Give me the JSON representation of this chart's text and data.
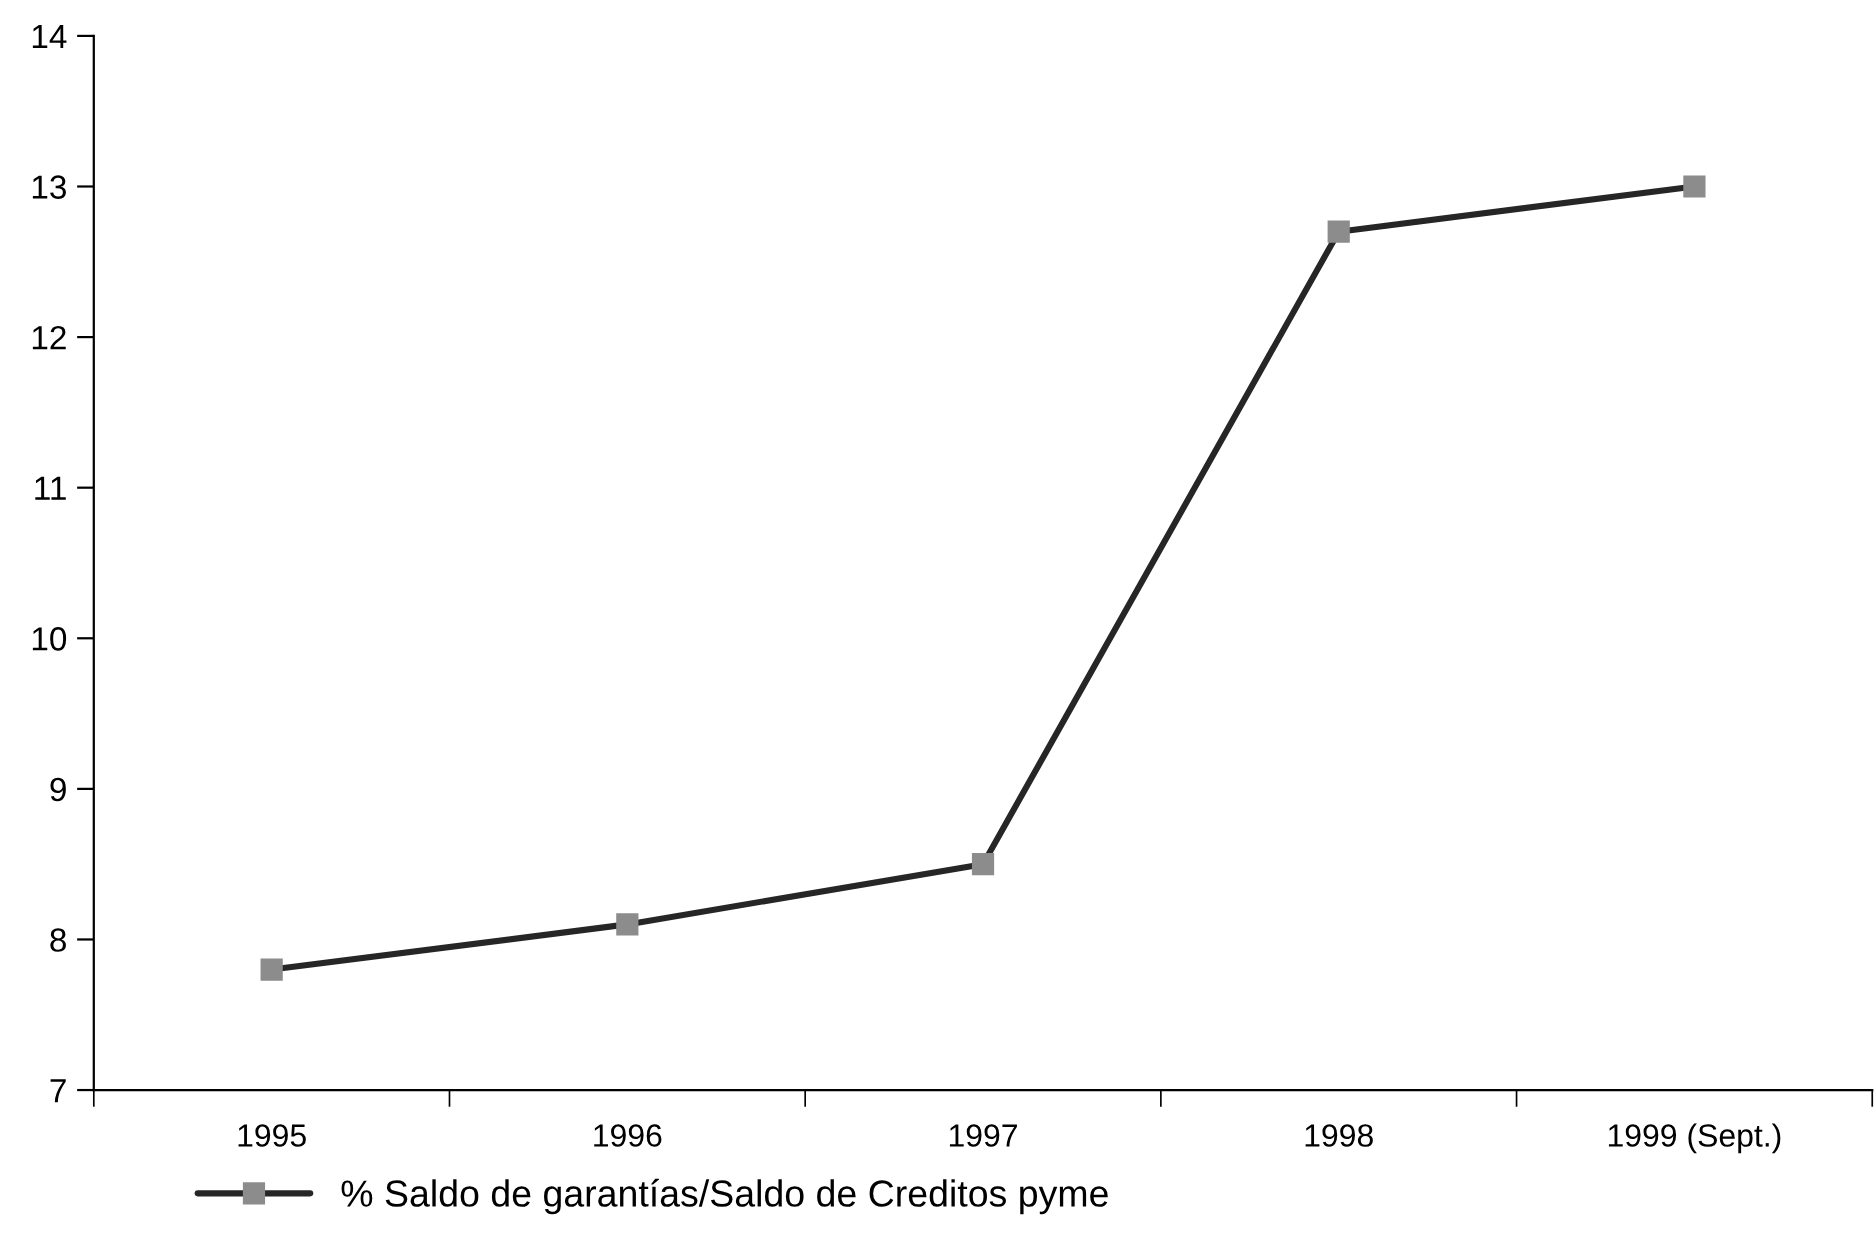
{
  "chart_data": {
    "type": "line",
    "categories": [
      "1995",
      "1996",
      "1997",
      "1998",
      "1999 (Sept.)"
    ],
    "series": [
      {
        "name": "% Saldo de garantías/Saldo de Creditos pyme",
        "color": "#262626",
        "values": [
          7.8,
          8.1,
          8.5,
          12.7,
          13.0
        ]
      }
    ],
    "ylim": [
      7,
      14
    ],
    "yticks": [
      7,
      8,
      9,
      10,
      11,
      12,
      13,
      14
    ],
    "grid": false,
    "legend": "bottom",
    "marker": "square",
    "line_style": "solid"
  }
}
